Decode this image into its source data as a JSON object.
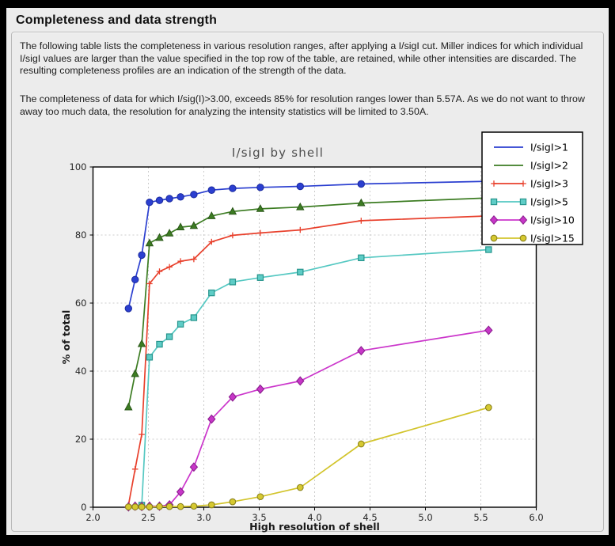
{
  "header": {
    "title": "Completeness and data strength"
  },
  "body": {
    "paragraph1": "The following table lists the completeness in various resolution ranges, after applying a I/sigI cut. Miller indices for which individual I/sigI values are larger than the value specified in the top row of the table, are retained, while other intensities are discarded. The resulting completeness profiles are an indication of the strength of the data.",
    "paragraph2": "The completeness of data for which I/sig(I)>3.00, exceeds  85% for resolution ranges lower than 5.57A. As we do not want to throw away too much data, the resolution for analyzing the intensity statistics will be limited to 3.50A."
  },
  "colors": {
    "panel_background": "#ececec",
    "plot_background": "#ffffff",
    "grid": "#cccccc",
    "axes_frame": "#000000",
    "chart_title": "#4d4d4d",
    "legend_background": "#ffffff",
    "legend_border": "#000000"
  },
  "chart_data": {
    "type": "line",
    "title": "I/sigI by shell",
    "xlabel": "High resolution of shell",
    "ylabel": "% of total",
    "xlim": [
      2.0,
      6.0
    ],
    "ylim": [
      0,
      100
    ],
    "grid": true,
    "legend_position": "upper right",
    "x_ticks": [
      "2.0",
      "2.5",
      "3.0",
      "3.5",
      "4.0",
      "4.5",
      "5.0",
      "5.5",
      "6.0"
    ],
    "y_ticks": [
      "0",
      "20",
      "40",
      "60",
      "80",
      "100"
    ],
    "x": [
      2.32,
      2.38,
      2.44,
      2.51,
      2.6,
      2.69,
      2.79,
      2.91,
      3.07,
      3.26,
      3.51,
      3.87,
      4.42,
      5.57
    ],
    "series": [
      {
        "label": "I/sigI>1",
        "color": "#2b3fd0",
        "marker": "circle",
        "marker_fill": "#2b3fd0",
        "marker_edge": "#1a2a9e",
        "marker_in_legend": false,
        "values": [
          58.4,
          66.9,
          74.1,
          89.6,
          90.2,
          90.7,
          91.2,
          91.9,
          93.2,
          93.7,
          94.0,
          94.3,
          95.0,
          95.8
        ]
      },
      {
        "label": "I/sigI>2",
        "color": "#3c7c22",
        "marker": "triangle",
        "marker_fill": "#3c7c22",
        "marker_edge": "#2a5718",
        "marker_in_legend": false,
        "values": [
          29.4,
          39.2,
          48.0,
          77.6,
          79.2,
          80.5,
          82.3,
          82.7,
          85.6,
          86.9,
          87.7,
          88.2,
          89.4,
          90.9
        ]
      },
      {
        "label": "I/sigI>3",
        "color": "#e8402c",
        "marker": "plus",
        "marker_fill": "#e8402c",
        "marker_edge": "#e8402c",
        "marker_in_legend": true,
        "values": [
          0.6,
          11.2,
          21.4,
          65.7,
          69.3,
          70.6,
          72.3,
          72.9,
          78.0,
          79.9,
          80.6,
          81.5,
          84.2,
          85.6
        ]
      },
      {
        "label": "I/sigI>5",
        "color": "#55c8c2",
        "marker": "square",
        "marker_fill": "#5eccc6",
        "marker_edge": "#27958d",
        "marker_in_legend": true,
        "values": [
          null,
          null,
          0.6,
          44.1,
          47.9,
          50.1,
          53.8,
          55.7,
          63.0,
          66.2,
          67.5,
          69.1,
          73.3,
          75.7
        ]
      },
      {
        "label": "I/sigI>10",
        "color": "#cb36cb",
        "marker": "diamond",
        "marker_fill": "#c736c7",
        "marker_edge": "#8c2090",
        "marker_in_legend": true,
        "values": [
          0.1,
          0.3,
          0.2,
          0.3,
          0.3,
          0.7,
          4.5,
          11.8,
          25.9,
          32.4,
          34.7,
          37.1,
          46.0,
          52.0
        ]
      },
      {
        "label": "I/sigI>15",
        "color": "#d2c42b",
        "marker": "dot",
        "marker_fill": "#d6c930",
        "marker_edge": "#8c831c",
        "marker_in_legend": true,
        "values": [
          0.1,
          0.1,
          0.1,
          0.1,
          0.2,
          0.2,
          0.2,
          0.3,
          0.7,
          1.6,
          3.1,
          5.8,
          18.6,
          29.3
        ]
      }
    ]
  }
}
